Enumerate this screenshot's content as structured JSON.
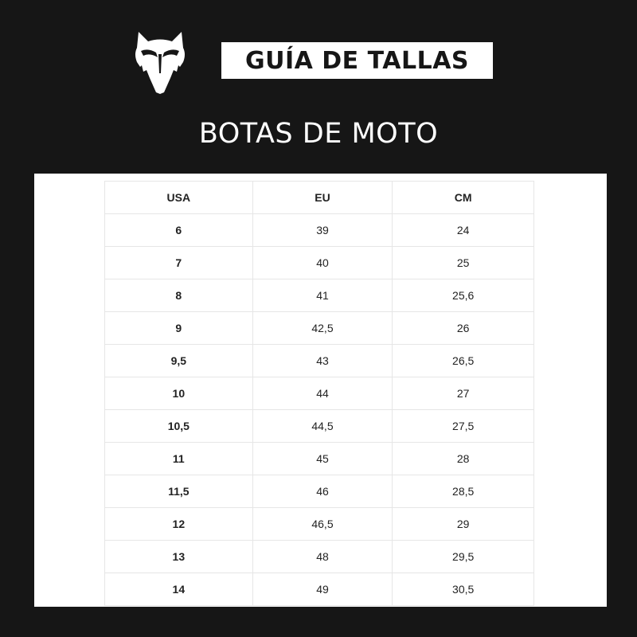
{
  "brand_logo": "fox-head-logo",
  "header": {
    "title": "GUÍA DE TALLAS",
    "subtitle": "BOTAS DE MOTO"
  },
  "table": {
    "columns": [
      "USA",
      "EU",
      "CM"
    ],
    "rows": [
      [
        "6",
        "39",
        "24"
      ],
      [
        "7",
        "40",
        "25"
      ],
      [
        "8",
        "41",
        "25,6"
      ],
      [
        "9",
        "42,5",
        "26"
      ],
      [
        "9,5",
        "43",
        "26,5"
      ],
      [
        "10",
        "44",
        "27"
      ],
      [
        "10,5",
        "44,5",
        "27,5"
      ],
      [
        "11",
        "45",
        "28"
      ],
      [
        "11,5",
        "46",
        "28,5"
      ],
      [
        "12",
        "46,5",
        "29"
      ],
      [
        "13",
        "48",
        "29,5"
      ],
      [
        "14",
        "49",
        "30,5"
      ]
    ]
  },
  "colors": {
    "background": "#161616",
    "panel": "#ffffff",
    "text": "#222222"
  }
}
